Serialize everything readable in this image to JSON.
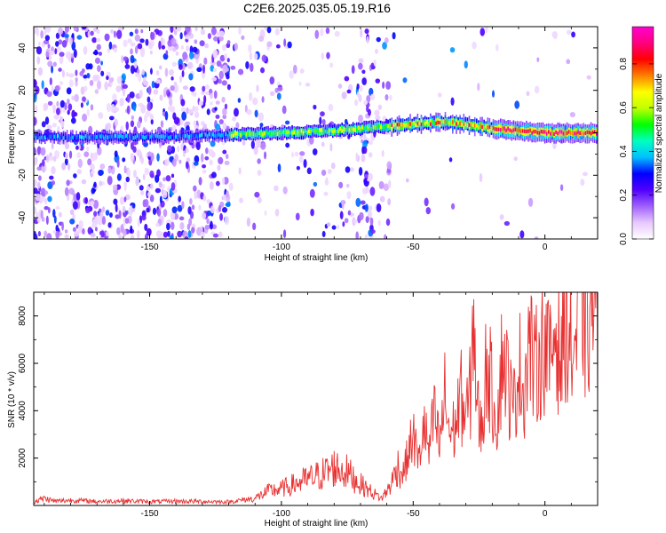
{
  "title": "C2E6.2025.035.05.19.R16",
  "colors": {
    "snr_line": "#e83232",
    "spectrum_peak": "#ff2a2a"
  },
  "chart_data": [
    {
      "type": "heatmap",
      "xlabel": "Height of straight line (km)",
      "ylabel": "Frequency (Hz)",
      "xlim": [
        -194,
        20
      ],
      "ylim": [
        -50,
        50
      ],
      "x_ticks": [
        -150,
        -100,
        -50,
        0
      ],
      "x_tick_labels": [
        "-150",
        "-100",
        "-50",
        "0"
      ],
      "y_ticks": [
        -40,
        -20,
        0,
        20,
        40
      ],
      "y_tick_labels": [
        "-40",
        "-20",
        "0",
        "20",
        "40"
      ],
      "colorbar": {
        "label": "Normalized spectral amplitude",
        "range": [
          0,
          0.97
        ],
        "ticks": [
          0.0,
          0.2,
          0.4,
          0.6,
          0.8
        ],
        "tick_labels": [
          "0.0",
          "0.2",
          "0.4",
          "0.6",
          "0.8"
        ],
        "colormap": [
          "#ffffff",
          "#e8c8ff",
          "#a060ff",
          "#5000ff",
          "#0000ff",
          "#00c0ff",
          "#00ffc0",
          "#00ff00",
          "#c0ff00",
          "#ffff00",
          "#ff8000",
          "#ff0000",
          "#ff0080",
          "#ff00d0"
        ]
      },
      "ridge": {
        "x": [
          -194,
          -150,
          -120,
          -100,
          -80,
          -60,
          -50,
          -40,
          -30,
          -20,
          -10,
          0,
          10,
          20
        ],
        "y": [
          -2,
          -2,
          -1,
          0,
          1,
          3,
          4,
          5,
          4,
          2,
          1,
          0,
          0,
          0
        ]
      }
    },
    {
      "type": "line",
      "xlabel": "Height of straight line (km)",
      "ylabel": "SNR (10 * v/v)",
      "xlim": [
        -194,
        20
      ],
      "ylim": [
        0,
        9000
      ],
      "x_ticks": [
        -150,
        -100,
        -50,
        0
      ],
      "x_tick_labels": [
        "-150",
        "-100",
        "-50",
        "0"
      ],
      "y_ticks": [
        2000,
        4000,
        6000,
        8000
      ],
      "y_tick_labels": [
        "2000",
        "4000",
        "6000",
        "8000"
      ],
      "series": [
        {
          "x": [
            -194,
            -190,
            -186,
            -180,
            -170,
            -160,
            -150,
            -140,
            -130,
            -120,
            -110,
            -105,
            -100,
            -95,
            -90,
            -85,
            -80,
            -75,
            -70,
            -65,
            -62,
            -60,
            -58,
            -56,
            -54,
            -52,
            -50,
            -48,
            -46,
            -44,
            -42,
            -40,
            -38,
            -36,
            -34,
            -32,
            -30,
            -28,
            -27,
            -26,
            -24,
            -22,
            -20,
            -18,
            -16,
            -14,
            -12,
            -10,
            -8,
            -6,
            -4,
            -2,
            0,
            2,
            4,
            6,
            8,
            10,
            12,
            14,
            16,
            18,
            20
          ],
          "y": [
            150,
            300,
            180,
            220,
            170,
            200,
            160,
            180,
            170,
            150,
            300,
            600,
            700,
            900,
            1100,
            1300,
            1600,
            1400,
            900,
            500,
            300,
            600,
            1000,
            1700,
            1300,
            2100,
            3000,
            1800,
            3400,
            2200,
            3800,
            2500,
            4600,
            3000,
            3300,
            4700,
            3600,
            5000,
            9000,
            4200,
            3100,
            6300,
            4600,
            3800,
            6600,
            5200,
            3900,
            6100,
            4800,
            7100,
            5600,
            6400,
            6900,
            5900,
            7700,
            6100,
            8100,
            6500,
            7000,
            8600,
            7300,
            8700,
            7200
          ]
        }
      ]
    }
  ]
}
